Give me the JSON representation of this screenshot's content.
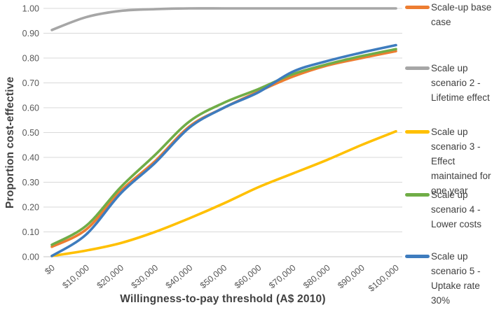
{
  "chart_data": {
    "type": "line",
    "title": "",
    "xlabel": "Willingness-to-pay threshold (A$ 2010)",
    "ylabel": "Proportion cost-effective",
    "x_values": [
      0,
      10000,
      20000,
      30000,
      40000,
      50000,
      60000,
      70000,
      80000,
      90000,
      100000
    ],
    "x_tick_labels": [
      "$0",
      "$10,000",
      "$20,000",
      "$30,000",
      "$40,000",
      "$50,000",
      "$60,000",
      "$70,000",
      "$80,000",
      "$90,000",
      "$100,000"
    ],
    "y_tick_labels": [
      "0.00",
      "0.10",
      "0.20",
      "0.30",
      "0.40",
      "0.50",
      "0.60",
      "0.70",
      "0.80",
      "0.90",
      "1.00"
    ],
    "ylim": [
      0,
      1
    ],
    "y_tick_step": 0.1,
    "grid": "horizontal-only",
    "legend_position": "right",
    "line_style": "smooth",
    "series": [
      {
        "name": "Scale-up base case",
        "legend_label": "Scale-up base\ncase",
        "color": "#ED7D31",
        "values": [
          0.04,
          0.11,
          0.265,
          0.385,
          0.525,
          0.6,
          0.665,
          0.725,
          0.77,
          0.8,
          0.828
        ]
      },
      {
        "name": "Scale up scenario 2 - Lifetime effect",
        "legend_label": "Scale up\nscenario 2 -\nLifetime effect",
        "color": "#A6A6A6",
        "values": [
          0.913,
          0.965,
          0.99,
          0.997,
          1.0,
          1.0,
          1.0,
          1.0,
          1.0,
          1.0,
          1.0
        ]
      },
      {
        "name": "Scale up scenario 3 - Effect maintained for one year",
        "legend_label": "Scale up\nscenario 3 -\nEffect\nmaintained for\none year",
        "color": "#FFC000",
        "values": [
          0.003,
          0.025,
          0.055,
          0.1,
          0.155,
          0.215,
          0.28,
          0.335,
          0.39,
          0.45,
          0.505
        ]
      },
      {
        "name": "Scale up scenario 4 - Lower costs",
        "legend_label": "Scale up\nscenario 4 -\nLower costs",
        "color": "#70AD47",
        "values": [
          0.048,
          0.125,
          0.28,
          0.41,
          0.545,
          0.62,
          0.675,
          0.735,
          0.775,
          0.808,
          0.836
        ]
      },
      {
        "name": "Scale up scenario 5 - Uptake rate 30%",
        "legend_label": "Scale up\nscenario 5 -\nUptake rate\n30%",
        "color": "#3E7CBE",
        "values": [
          0.003,
          0.09,
          0.255,
          0.378,
          0.52,
          0.6,
          0.662,
          0.745,
          0.788,
          0.822,
          0.852
        ]
      }
    ]
  },
  "colors": {
    "background": "#FFFFFF",
    "gridline": "#D9D9D9",
    "axis_line": "#C6C6C6",
    "tick_label": "#595959",
    "axis_title": "#404040",
    "legend_text": "#404040"
  }
}
